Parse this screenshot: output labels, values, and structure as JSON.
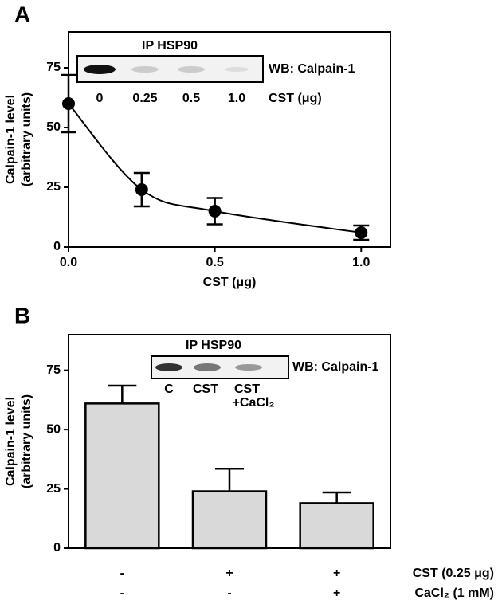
{
  "chart_data": [
    {
      "type": "line",
      "panel_label": "A",
      "x": [
        0,
        0.25,
        0.5,
        1.0
      ],
      "values": [
        60,
        24,
        15,
        6
      ],
      "errors": [
        12,
        7,
        5.5,
        3
      ],
      "color": "#000000",
      "xlim": [
        0,
        1.1
      ],
      "xticks": [
        {
          "value": 0,
          "label": "0.0"
        },
        0.5,
        {
          "value": 1,
          "label": "1.0"
        }
      ],
      "ylim": [
        0,
        90
      ],
      "yticks": [
        0,
        25,
        50,
        75
      ],
      "xlabel": "CST (μg)",
      "ylabel": [
        "Calpain-1 level",
        "(arbitrary units)"
      ],
      "inset": {
        "title": "IP HSP90",
        "label": "WB: Calpain-1",
        "lanes": [
          "0",
          "0.25",
          "0.5",
          "1.0"
        ],
        "lane_unit": "CST (μg)"
      }
    },
    {
      "type": "bar",
      "panel_label": "B",
      "categories": [
        null,
        null,
        null
      ],
      "values": [
        61,
        24,
        19
      ],
      "errors": [
        7.5,
        9.5,
        4.5
      ],
      "color": "#d9d9d9",
      "ylim": [
        0,
        90
      ],
      "yticks": [
        0,
        25,
        50,
        75
      ],
      "ylabel": [
        "Calpain-1 level",
        "(arbitrary units)"
      ],
      "conditions": [
        {
          "name": "CST (0.25 μg)",
          "values": [
            "-",
            "+",
            "+"
          ]
        },
        {
          "name": "CaCl₂ (1 mM)",
          "values": [
            "-",
            "-",
            "+"
          ]
        }
      ],
      "inset": {
        "title": "IP HSP90",
        "label": "WB: Calpain-1",
        "lanes": [
          "C",
          "CST",
          "CST"
        ],
        "lane_note": "+CaCl₂"
      }
    }
  ]
}
